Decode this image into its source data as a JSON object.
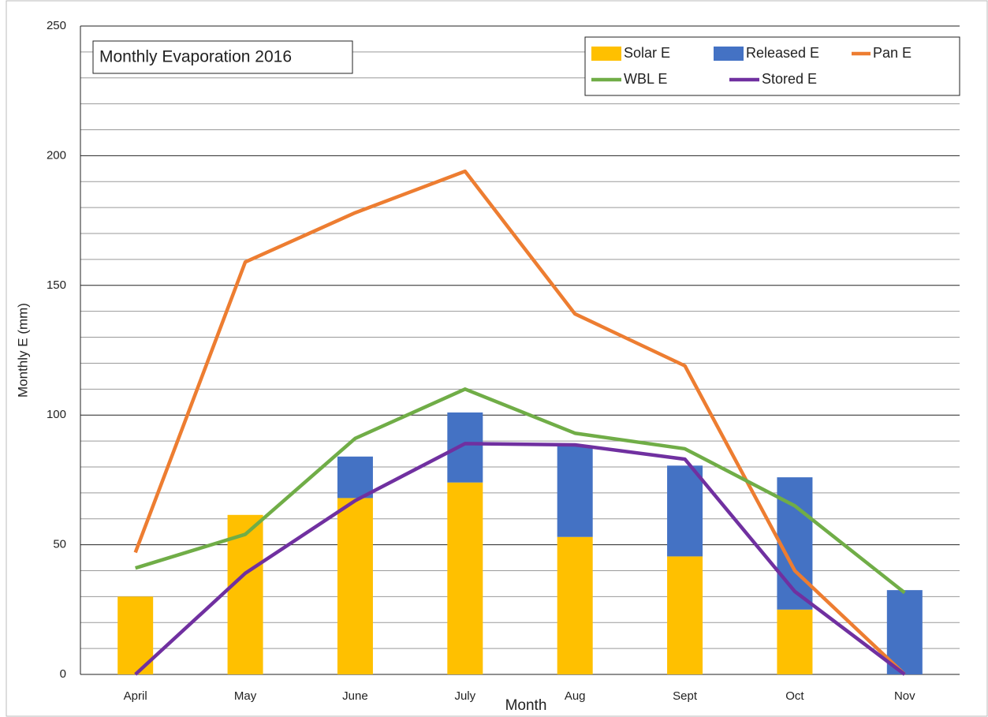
{
  "chart_data": {
    "type": "bar",
    "title": "Monthly Evaporation 2016",
    "x_label": "Month",
    "y_label": "Monthly E (mm)",
    "categories": [
      "April",
      "May",
      "June",
      "July",
      "Aug",
      "Sept",
      "Oct",
      "Nov"
    ],
    "series": [
      {
        "name": "Solar E",
        "type": "bar",
        "color": "#FFC000",
        "values": [
          30,
          61.5,
          68,
          74,
          53,
          45.5,
          25,
          0
        ]
      },
      {
        "name": "Released E",
        "type": "bar",
        "color": "#4472C4",
        "values": [
          0,
          0,
          16,
          27,
          35,
          35,
          51,
          32.5
        ]
      },
      {
        "name": "Pan E",
        "type": "line",
        "color": "#ED7D31",
        "values": [
          47,
          159,
          178,
          194,
          139,
          119,
          40,
          0
        ]
      },
      {
        "name": "WBL E",
        "type": "line",
        "color": "#70AD47",
        "values": [
          41,
          54,
          91,
          110,
          93,
          87,
          65,
          31.5
        ]
      },
      {
        "name": "Stored E",
        "type": "line",
        "color": "#7030A0",
        "values": [
          0,
          39,
          67,
          89,
          88.5,
          83,
          32,
          0
        ]
      }
    ],
    "ylim": [
      0,
      250
    ],
    "yticks": [
      0,
      50,
      100,
      150,
      200,
      250
    ],
    "minor_yticks": [
      10,
      20,
      30,
      40,
      60,
      70,
      80,
      90,
      110,
      120,
      130,
      140,
      160,
      170,
      180,
      190,
      210,
      220,
      230,
      240
    ],
    "grid": true,
    "legend": "upper right"
  }
}
